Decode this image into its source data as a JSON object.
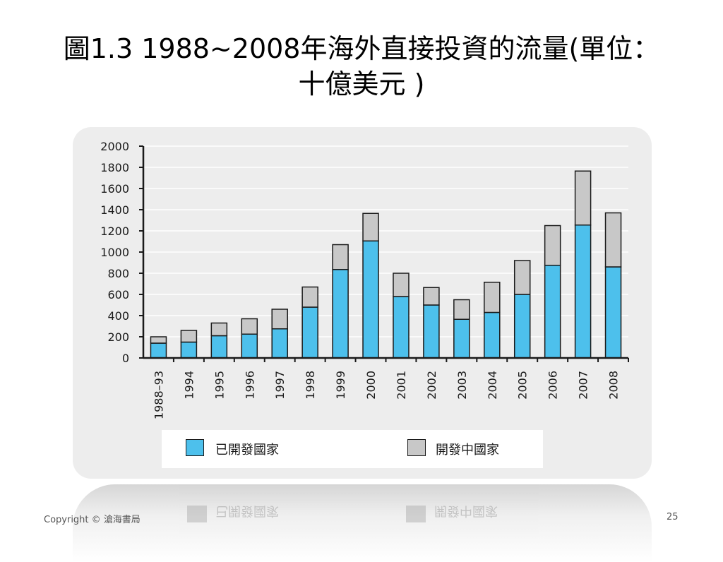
{
  "slide": {
    "title_line1": "圖1.3 1988~2008年海外直接投資的流量(單位：",
    "title_line2": "十億美元 )",
    "copyright": "Copyright © 滄海書局",
    "page_number": "25"
  },
  "chart_data": {
    "type": "bar",
    "stacked": true,
    "categories": [
      "1988–93",
      "1994",
      "1995",
      "1996",
      "1997",
      "1998",
      "1999",
      "2000",
      "2001",
      "2002",
      "2003",
      "2004",
      "2005",
      "2006",
      "2007",
      "2008"
    ],
    "series": [
      {
        "name": "已開發國家",
        "color": "#4dc0ec",
        "values": [
          140,
          150,
          210,
          225,
          275,
          480,
          835,
          1105,
          580,
          500,
          365,
          430,
          600,
          875,
          1255,
          860
        ]
      },
      {
        "name": "開發中國家",
        "color": "#c8c8c8",
        "values": [
          60,
          110,
          120,
          145,
          185,
          190,
          235,
          260,
          220,
          165,
          185,
          285,
          320,
          375,
          510,
          510
        ]
      }
    ],
    "yticks": [
      "0",
      "200",
      "400",
      "600",
      "800",
      "1000",
      "1200",
      "1400",
      "1600",
      "1800",
      "2000"
    ],
    "ylim": [
      0,
      2000
    ],
    "grid": true,
    "legend_position": "bottom"
  }
}
